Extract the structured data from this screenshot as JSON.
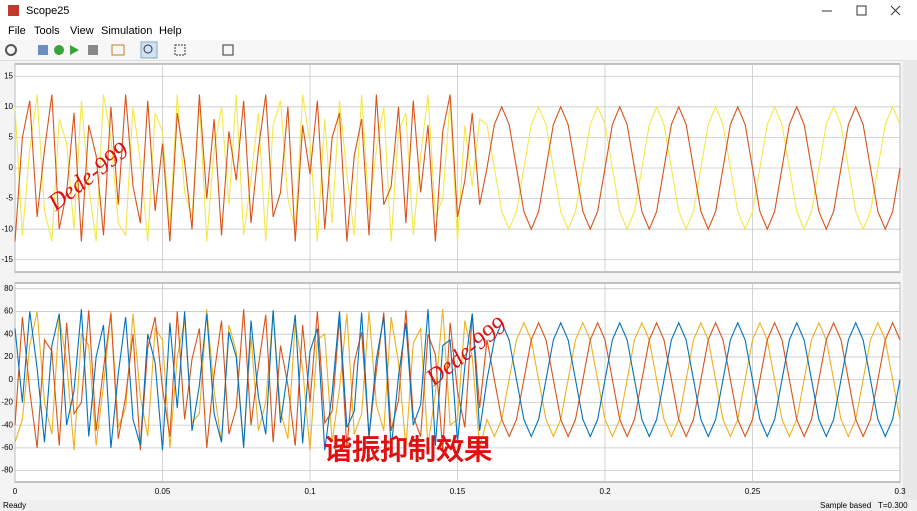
{
  "window": {
    "title": "Scope25"
  },
  "menu": [
    "File",
    "Tools",
    "View",
    "Simulation",
    "Help"
  ],
  "status": {
    "left": "Ready",
    "mode": "Sample based",
    "time": "T=0.300"
  },
  "chart_data": [
    {
      "type": "line",
      "grid": true,
      "show_xtick_labels": false,
      "annotations": [
        "Dede-999"
      ],
      "xlim": [
        0,
        0.3
      ],
      "xticks": [
        0,
        0.05,
        0.1,
        0.15,
        0.2,
        0.25,
        0.3
      ],
      "ylim": [
        -17,
        17
      ],
      "yticks": [
        -15,
        -10,
        -5,
        0,
        5,
        10,
        15
      ],
      "x": [
        0,
        0.0025,
        0.005,
        0.0075,
        0.01,
        0.0125,
        0.015,
        0.0175,
        0.02,
        0.0225,
        0.025,
        0.0275,
        0.03,
        0.0325,
        0.035,
        0.0375,
        0.04,
        0.0425,
        0.045,
        0.0475,
        0.05,
        0.0525,
        0.055,
        0.0575,
        0.06,
        0.0625,
        0.065,
        0.0675,
        0.07,
        0.0725,
        0.075,
        0.0775,
        0.08,
        0.0825,
        0.085,
        0.0875,
        0.09,
        0.0925,
        0.095,
        0.0975,
        0.1,
        0.1025,
        0.105,
        0.1075,
        0.11,
        0.1125,
        0.115,
        0.1175,
        0.12,
        0.1225,
        0.125,
        0.1275,
        0.13,
        0.1325,
        0.135,
        0.1375,
        0.14,
        0.1425,
        0.145,
        0.1475,
        0.15,
        0.1525,
        0.155,
        0.1575,
        0.16,
        0.1625,
        0.165,
        0.1675,
        0.17,
        0.1725,
        0.175,
        0.1775,
        0.18,
        0.1825,
        0.185,
        0.1875,
        0.19,
        0.1925,
        0.195,
        0.1975,
        0.2,
        0.2025,
        0.205,
        0.2075,
        0.21,
        0.2125,
        0.215,
        0.2175,
        0.22,
        0.2225,
        0.225,
        0.2275,
        0.23,
        0.2325,
        0.235,
        0.2375,
        0.24,
        0.2425,
        0.245,
        0.2475,
        0.25,
        0.2525,
        0.255,
        0.2575,
        0.26,
        0.2625,
        0.265,
        0.2675,
        0.27,
        0.2725,
        0.275,
        0.2775,
        0.28,
        0.2825,
        0.285,
        0.2875,
        0.29,
        0.2925,
        0.295,
        0.2975,
        0.3
      ],
      "series": [
        {
          "color": "#f2e84b",
          "values": [
            10,
            -11,
            3,
            12,
            -7,
            -12,
            8,
            4,
            -10,
            11,
            -3,
            -12,
            12,
            5,
            -9,
            -11,
            10,
            1,
            -12,
            9,
            6,
            -10,
            12,
            -4,
            -8,
            11,
            -12,
            3,
            10,
            -6,
            12,
            -11,
            -2,
            9,
            -12,
            7,
            11,
            -5,
            -10,
            12,
            4,
            -12,
            8,
            -9,
            11,
            -1,
            -11,
            12,
            -7,
            3,
            10,
            -12,
            6,
            9,
            -11,
            2,
            12,
            -8,
            -5,
            11,
            -12,
            7,
            -3,
            8,
            7.1,
            0,
            -7.1,
            -10,
            -7.1,
            0,
            7.1,
            10,
            7.1,
            0,
            -7.1,
            -10,
            -7.1,
            0,
            7.1,
            10,
            7.1,
            0,
            -7.1,
            -10,
            -7.1,
            0,
            7.1,
            10,
            7.1,
            0,
            -7.1,
            -10,
            -7.1,
            0,
            7.1,
            10,
            7.1,
            0,
            -7.1,
            -10,
            -7.1,
            0,
            7.1,
            10,
            7.1,
            0,
            -7.1,
            -10,
            -7.1,
            0,
            7.1,
            10,
            7.1,
            0,
            -7.1,
            -10,
            -7.1,
            0,
            7.1,
            10,
            7.1
          ]
        },
        {
          "color": "#d95319",
          "values": [
            -12,
            5,
            11,
            -8,
            3,
            12,
            -10,
            -4,
            9,
            -12,
            7,
            2,
            -11,
            10,
            -6,
            12,
            -3,
            -9,
            11,
            -7,
            4,
            -12,
            9,
            1,
            -10,
            12,
            -5,
            8,
            -11,
            6,
            -2,
            11,
            -9,
            3,
            12,
            -8,
            -4,
            10,
            -12,
            7,
            -1,
            11,
            -10,
            5,
            9,
            -12,
            2,
            8,
            -11,
            12,
            -6,
            -3,
            10,
            -9,
            11,
            -4,
            7,
            -12,
            6,
            12,
            -8,
            -2,
            9,
            -6,
            0,
            7.1,
            10,
            7.1,
            0,
            -7.1,
            -10,
            -7.1,
            0,
            7.1,
            10,
            7.1,
            0,
            -7.1,
            -10,
            -7.1,
            0,
            7.1,
            10,
            7.1,
            0,
            -7.1,
            -10,
            -7.1,
            0,
            7.1,
            10,
            7.1,
            0,
            -7.1,
            -10,
            -7.1,
            0,
            7.1,
            10,
            7.1,
            0,
            -7.1,
            -10,
            -7.1,
            0,
            7.1,
            10,
            7.1,
            0,
            -7.1,
            -10,
            -7.1,
            0,
            7.1,
            10,
            7.1,
            0,
            -7.1,
            -10,
            -7.1,
            0
          ]
        }
      ]
    },
    {
      "type": "line",
      "grid": true,
      "show_xtick_labels": true,
      "annotations": [
        "Dede-999",
        "谐振抑制效果"
      ],
      "xlim": [
        0,
        0.3
      ],
      "xticks": [
        0,
        0.05,
        0.1,
        0.15,
        0.2,
        0.25,
        0.3
      ],
      "ylim": [
        -90,
        85
      ],
      "yticks": [
        -80,
        -60,
        -40,
        -20,
        0,
        20,
        40,
        60,
        80
      ],
      "x": [
        0,
        0.0025,
        0.005,
        0.0075,
        0.01,
        0.0125,
        0.015,
        0.0175,
        0.02,
        0.0225,
        0.025,
        0.0275,
        0.03,
        0.0325,
        0.035,
        0.0375,
        0.04,
        0.0425,
        0.045,
        0.0475,
        0.05,
        0.0525,
        0.055,
        0.0575,
        0.06,
        0.0625,
        0.065,
        0.0675,
        0.07,
        0.0725,
        0.075,
        0.0775,
        0.08,
        0.0825,
        0.085,
        0.0875,
        0.09,
        0.0925,
        0.095,
        0.0975,
        0.1,
        0.1025,
        0.105,
        0.1075,
        0.11,
        0.1125,
        0.115,
        0.1175,
        0.12,
        0.1225,
        0.125,
        0.1275,
        0.13,
        0.1325,
        0.135,
        0.1375,
        0.14,
        0.1425,
        0.145,
        0.1475,
        0.15,
        0.1525,
        0.155,
        0.1575,
        0.16,
        0.1625,
        0.165,
        0.1675,
        0.17,
        0.1725,
        0.175,
        0.1775,
        0.18,
        0.1825,
        0.185,
        0.1875,
        0.19,
        0.1925,
        0.195,
        0.1975,
        0.2,
        0.2025,
        0.205,
        0.2075,
        0.21,
        0.2125,
        0.215,
        0.2175,
        0.22,
        0.2225,
        0.225,
        0.2275,
        0.23,
        0.2325,
        0.235,
        0.2375,
        0.24,
        0.2425,
        0.245,
        0.2475,
        0.25,
        0.2525,
        0.255,
        0.2575,
        0.26,
        0.2625,
        0.265,
        0.2675,
        0.27,
        0.2725,
        0.275,
        0.2775,
        0.28,
        0.2825,
        0.285,
        0.2875,
        0.29,
        0.2925,
        0.295,
        0.2975,
        0.3
      ],
      "series": [
        {
          "color": "#edb120",
          "values": [
            -55,
            -35,
            30,
            60,
            -20,
            -48,
            55,
            15,
            -62,
            40,
            30,
            -58,
            -5,
            60,
            -42,
            -25,
            58,
            -15,
            -50,
            45,
            35,
            -60,
            20,
            52,
            -38,
            -30,
            62,
            -10,
            -55,
            48,
            25,
            -58,
            38,
            -45,
            -20,
            60,
            -28,
            -52,
            50,
            10,
            -62,
            35,
            40,
            -55,
            -8,
            58,
            -48,
            -30,
            60,
            -22,
            -45,
            55,
            15,
            -60,
            32,
            45,
            -58,
            -12,
            62,
            -40,
            -35,
            52,
            20,
            -60,
            -35,
            -50,
            -35,
            0,
            35,
            50,
            35,
            0,
            -35,
            -50,
            -35,
            0,
            35,
            50,
            35,
            0,
            -35,
            -50,
            -35,
            0,
            35,
            50,
            35,
            0,
            -35,
            -50,
            -35,
            0,
            35,
            50,
            35,
            0,
            -35,
            -50,
            -35,
            0,
            35,
            50,
            35,
            0,
            -35,
            -50,
            -35,
            0,
            35,
            50,
            35,
            0,
            -35,
            -50,
            -35,
            0,
            35,
            50,
            35,
            0,
            -35
          ]
        },
        {
          "color": "#d95319",
          "values": [
            -40,
            55,
            -10,
            -60,
            35,
            25,
            -58,
            50,
            -30,
            -20,
            61,
            -45,
            10,
            58,
            -52,
            -15,
            40,
            -62,
            28,
            55,
            -8,
            -50,
            60,
            -35,
            18,
            45,
            -60,
            5,
            52,
            -48,
            -25,
            62,
            -40,
            12,
            57,
            -55,
            30,
            -5,
            -58,
            48,
            -20,
            60,
            -38,
            -28,
            55,
            -60,
            15,
            42,
            -50,
            8,
            59,
            -45,
            -18,
            61,
            -32,
            -50,
            40,
            22,
            -62,
            50,
            -10,
            -42,
            58,
            -25,
            35,
            0,
            -35,
            -50,
            -35,
            0,
            35,
            50,
            35,
            0,
            -35,
            -50,
            -35,
            0,
            35,
            50,
            35,
            0,
            -35,
            -50,
            -35,
            0,
            35,
            50,
            35,
            0,
            -35,
            -50,
            -35,
            0,
            35,
            50,
            35,
            0,
            -35,
            -50,
            -35,
            0,
            35,
            50,
            35,
            0,
            -35,
            -50,
            -35,
            0,
            35,
            50,
            35,
            0,
            -35,
            -50,
            -35,
            0,
            35,
            50,
            35
          ]
        },
        {
          "color": "#0072bd",
          "values": [
            45,
            -20,
            60,
            10,
            -55,
            30,
            58,
            -40,
            -10,
            62,
            -50,
            20,
            48,
            -60,
            5,
            55,
            -35,
            -58,
            40,
            15,
            -62,
            50,
            -25,
            60,
            -45,
            -5,
            58,
            -30,
            -55,
            42,
            20,
            -60,
            52,
            -15,
            -48,
            61,
            -38,
            8,
            57,
            -56,
            25,
            45,
            -62,
            -12,
            60,
            -42,
            -28,
            59,
            -50,
            18,
            55,
            -61,
            3,
            50,
            -40,
            -22,
            62,
            -58,
            30,
            35,
            -55,
            12,
            58,
            -45,
            0,
            35,
            50,
            35,
            0,
            -35,
            -50,
            -35,
            0,
            35,
            50,
            35,
            0,
            -35,
            -50,
            -35,
            0,
            35,
            50,
            35,
            0,
            -35,
            -50,
            -35,
            0,
            35,
            50,
            35,
            0,
            -35,
            -50,
            -35,
            0,
            35,
            50,
            35,
            0,
            -35,
            -50,
            -35,
            0,
            35,
            50,
            35,
            0,
            -35,
            -50,
            -35,
            0,
            35,
            50,
            35,
            0,
            -35,
            -50,
            -35,
            0
          ]
        }
      ]
    }
  ]
}
